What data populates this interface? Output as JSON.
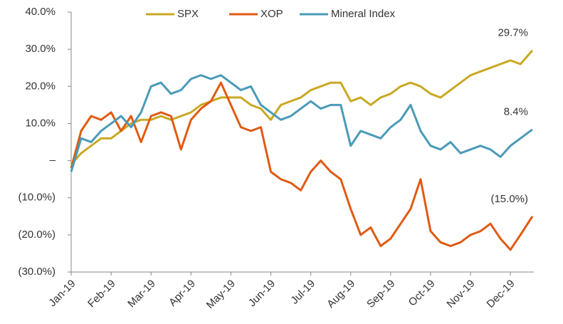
{
  "chart_data": {
    "type": "line",
    "x": [
      0,
      0.25,
      0.5,
      0.75,
      1,
      1.25,
      1.5,
      1.75,
      2,
      2.25,
      2.5,
      2.75,
      3,
      3.25,
      3.5,
      3.75,
      4,
      4.25,
      4.5,
      4.75,
      5,
      5.25,
      5.5,
      5.75,
      6,
      6.25,
      6.5,
      6.75,
      7,
      7.25,
      7.5,
      7.75,
      8,
      8.25,
      8.5,
      8.75,
      9,
      9.25,
      9.5,
      9.75,
      10,
      10.25,
      10.5,
      10.75,
      11,
      11.25,
      11.55
    ],
    "xlim": [
      0,
      11.55
    ],
    "xticks": [
      {
        "value": 0,
        "label": "Jan-19"
      },
      {
        "value": 1,
        "label": "Feb-19"
      },
      {
        "value": 2,
        "label": "Mar-19"
      },
      {
        "value": 3,
        "label": "Apr-19"
      },
      {
        "value": 4,
        "label": "May-19"
      },
      {
        "value": 5,
        "label": "Jun-19"
      },
      {
        "value": 6,
        "label": "Jul-19"
      },
      {
        "value": 7,
        "label": "Aug-19"
      },
      {
        "value": 8,
        "label": "Sep-19"
      },
      {
        "value": 9,
        "label": "Oct-19"
      },
      {
        "value": 10,
        "label": "Nov-19"
      },
      {
        "value": 11,
        "label": "Dec-19"
      }
    ],
    "ylim": [
      -30,
      40
    ],
    "yticks": [
      {
        "value": 40,
        "label": "40.0%"
      },
      {
        "value": 30,
        "label": "30.0%"
      },
      {
        "value": 20,
        "label": "20.0%"
      },
      {
        "value": 10,
        "label": "10.0%"
      },
      {
        "value": 0,
        "label": "–"
      },
      {
        "value": -10,
        "label": "(10.0%)"
      },
      {
        "value": -20,
        "label": "(20.0%)"
      },
      {
        "value": -30,
        "label": "(30.0%)"
      }
    ],
    "series": [
      {
        "name": "SPX",
        "color": "#c9a823",
        "values": [
          -1,
          2,
          4,
          6,
          6,
          8,
          10,
          11,
          11,
          12,
          11,
          12,
          13,
          15,
          16,
          17,
          17,
          17,
          15,
          14,
          11,
          15,
          16,
          17,
          19,
          20,
          21,
          21,
          16,
          17,
          15,
          17,
          18,
          20,
          21,
          20,
          18,
          17,
          19,
          21,
          23,
          24,
          25,
          26,
          27,
          26,
          29.7
        ],
        "value_labels": [
          null,
          null,
          null,
          null,
          null,
          null,
          null,
          null,
          null,
          null,
          null,
          null,
          null,
          null,
          null,
          null,
          null,
          null,
          null,
          null,
          null,
          null,
          null,
          null,
          null,
          null,
          null,
          null,
          null,
          null,
          null,
          null,
          null,
          null,
          null,
          null,
          null,
          null,
          null,
          null,
          null,
          null,
          null,
          null,
          null,
          null,
          "29.7%"
        ]
      },
      {
        "name": "XOP",
        "color": "#e05a12",
        "values": [
          -2,
          8,
          12,
          11,
          13,
          8,
          12,
          5,
          12,
          13,
          12,
          3,
          11,
          14,
          16,
          21,
          15,
          9,
          8,
          9,
          -3,
          -5,
          -6,
          -8,
          -3,
          0,
          -3,
          -5,
          -13,
          -20,
          -18,
          -23,
          -21,
          -17,
          -13,
          -5,
          -19,
          -22,
          -23,
          -22,
          -20,
          -19,
          -17,
          -21,
          -24,
          -20,
          -15
        ],
        "value_labels": [
          null,
          null,
          null,
          null,
          null,
          null,
          null,
          null,
          null,
          null,
          null,
          null,
          null,
          null,
          null,
          null,
          null,
          null,
          null,
          null,
          null,
          null,
          null,
          null,
          null,
          null,
          null,
          null,
          null,
          null,
          null,
          null,
          null,
          null,
          null,
          null,
          null,
          null,
          null,
          null,
          null,
          null,
          null,
          null,
          null,
          null,
          "(15.0%)"
        ]
      },
      {
        "name": "Mineral Index",
        "color": "#4a9ab8",
        "values": [
          -3,
          6,
          5,
          8,
          10,
          12,
          9,
          13,
          20,
          21,
          18,
          19,
          22,
          23,
          22,
          23,
          21,
          19,
          20,
          15,
          13,
          11,
          12,
          14,
          16,
          14,
          15,
          15,
          4,
          8,
          7,
          6,
          9,
          11,
          15,
          8,
          4,
          3,
          5,
          2,
          3,
          4,
          3,
          1,
          4,
          6,
          8.4
        ],
        "value_labels": [
          null,
          null,
          null,
          null,
          null,
          null,
          null,
          null,
          null,
          null,
          null,
          null,
          null,
          null,
          null,
          null,
          null,
          null,
          null,
          null,
          null,
          null,
          null,
          null,
          null,
          null,
          null,
          null,
          null,
          null,
          null,
          null,
          null,
          null,
          null,
          null,
          null,
          null,
          null,
          null,
          null,
          null,
          null,
          null,
          null,
          null,
          "8.4%"
        ]
      }
    ]
  }
}
